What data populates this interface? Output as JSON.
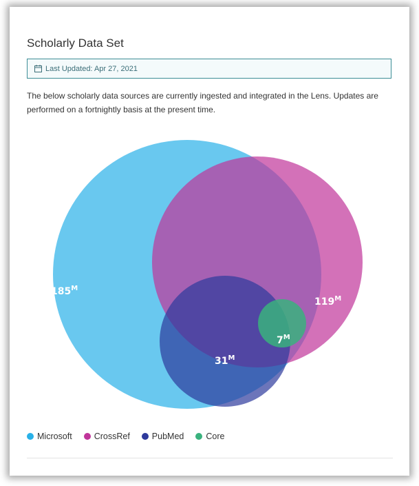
{
  "card": {
    "title": "Scholarly Data Set",
    "last_updated": "Last Updated: Apr 27, 2021",
    "description": "The below scholarly data sources are currently ingested and integrated in the Lens. Updates are performed on a fortnightly basis at the present time."
  },
  "venn": {
    "sets": [
      {
        "name": "Microsoft",
        "value": "185",
        "unit": "M",
        "color": "#29b1e8"
      },
      {
        "name": "CrossRef",
        "value": "119",
        "unit": "M",
        "color": "#c0359a"
      },
      {
        "name": "PubMed",
        "value": "31",
        "unit": "M",
        "color": "#2e3a9c"
      },
      {
        "name": "Core",
        "value": "7",
        "unit": "M",
        "color": "#3ab27e"
      }
    ]
  },
  "legend": {
    "items": [
      {
        "label": "Microsoft",
        "color": "#29b1e8"
      },
      {
        "label": "CrossRef",
        "color": "#c0359a"
      },
      {
        "label": "PubMed",
        "color": "#2e3a9c"
      },
      {
        "label": "Core",
        "color": "#3ab27e"
      }
    ]
  },
  "icons": {
    "calendar": "calendar-icon"
  }
}
